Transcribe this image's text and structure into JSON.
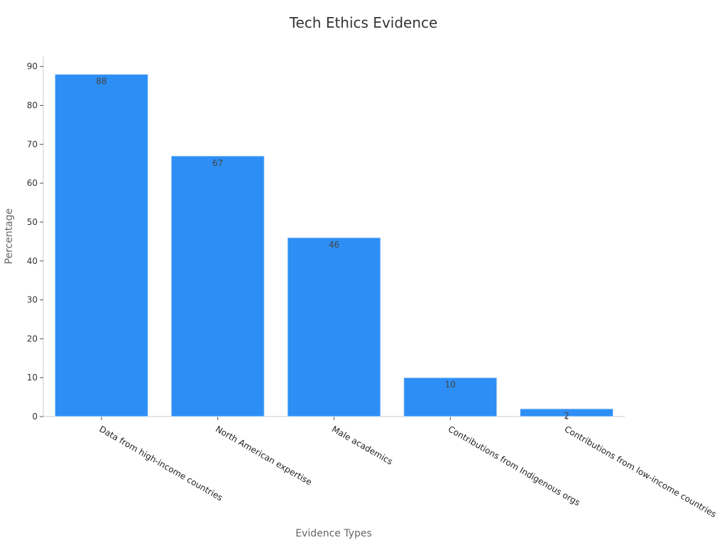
{
  "chart_data": {
    "type": "bar",
    "title": "Tech Ethics Evidence",
    "xlabel": "Evidence Types",
    "ylabel": "Percentage",
    "categories": [
      "Data from high-income countries",
      "North American expertise",
      "Male academics",
      "Contributions from Indigenous orgs",
      "Contributions from low-income countries"
    ],
    "values": [
      88,
      67,
      46,
      10,
      2
    ],
    "ylim": [
      0,
      92.5
    ],
    "yticks": [
      0,
      10,
      20,
      30,
      40,
      50,
      60,
      70,
      80,
      90
    ],
    "grid": false,
    "legend": "none",
    "colors": {
      "bar": "#2d8ff5",
      "axis": "#cccccc"
    }
  }
}
